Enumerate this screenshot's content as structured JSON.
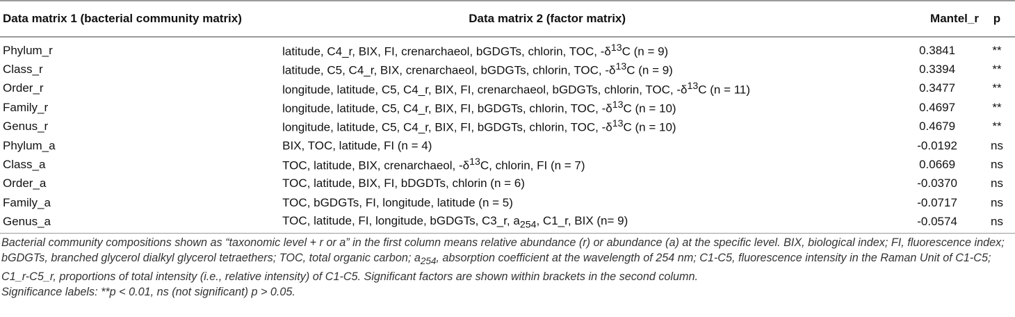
{
  "table": {
    "headers": [
      "Data matrix 1 (bacterial community matrix)",
      "Data matrix 2 (factor matrix)",
      "Mantel_r",
      "p"
    ],
    "rows": [
      {
        "m1": "Phylum_r",
        "f1": "latitude, C4_r, BIX, FI, crenarchaeol, bGDGTs, chlorin, TOC, -δ",
        "sup": "13",
        "f2": "C (n = 9)",
        "r": "0.3841",
        "p": "**"
      },
      {
        "m1": "Class_r",
        "f1": "latitude, C5, C4_r, BIX, crenarchaeol, bGDGTs, chlorin, TOC, -δ",
        "sup": "13",
        "f2": "C (n = 9)",
        "r": "0.3394",
        "p": "**"
      },
      {
        "m1": "Order_r",
        "f1": "longitude, latitude, C5, C4_r, BIX, FI, crenarchaeol, bGDGTs, chlorin, TOC, -δ",
        "sup": "13",
        "f2": "C (n = 11)",
        "r": "0.3477",
        "p": "**"
      },
      {
        "m1": "Family_r",
        "f1": "longitude, latitude, C5, C4_r, BIX, FI, bGDGTs, chlorin, TOC, -δ",
        "sup": "13",
        "f2": "C (n = 10)",
        "r": "0.4697",
        "p": "**"
      },
      {
        "m1": "Genus_r",
        "f1": "longitude, latitude, C5, C4_r, BIX, FI, bGDGTs, chlorin, TOC, -δ",
        "sup": "13",
        "f2": "C (n = 10)",
        "r": "0.4679",
        "p": "**"
      },
      {
        "m1": "Phylum_a",
        "f1": "BIX, TOC, latitude, FI (n = 4)",
        "r": "-0.0192",
        "p": "ns"
      },
      {
        "m1": "Class_a",
        "f1": "TOC, latitude, BIX, crenarchaeol, -δ",
        "sup": "13",
        "f2": "C, chlorin, FI (n = 7)",
        "r": "0.0669",
        "p": "ns"
      },
      {
        "m1": "Order_a",
        "f1": "TOC, latitude, BIX, FI, bDGDTs, chlorin (n = 6)",
        "r": "-0.0370",
        "p": "ns"
      },
      {
        "m1": "Family_a",
        "f1": "TOC, bGDGTs, FI, longitude, latitude (n = 5)",
        "r": "-0.0717",
        "p": "ns"
      },
      {
        "m1": "Genus_a",
        "f1": "TOC, latitude, FI, longitude, bGDGTs, C3_r, a",
        "sub": "254",
        "f2": ", C1_r, BIX (n= 9)",
        "r": "-0.0574",
        "p": "ns"
      }
    ]
  },
  "footnote": {
    "p1_a": "Bacterial community compositions shown as “taxonomic level + r or a” in the first column means relative abundance (r) or abundance (a) at the specific level. BIX, biological index; FI, fluorescence index; bGDGTs, branched glycerol dialkyl glycerol tetraethers; TOC, total organic carbon; a",
    "p1_sub": "254",
    "p1_b": ", absorption coefficient at the wavelength of 254 nm; C1-C5, fluorescence intensity in the Raman Unit of C1-C5; C1_r-C5_r, proportions of total intensity (i.e., relative intensity) of C1-C5. Significant factors are shown within brackets in the second column.",
    "p2": "Significance labels: **p < 0.01, ns (not significant) p > 0.05."
  }
}
